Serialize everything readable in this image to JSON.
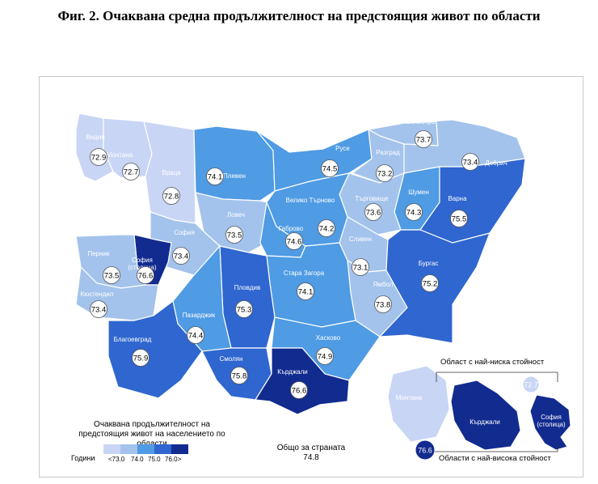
{
  "title": "Фиг. 2. Очаквана средна продължителност на предстоящия живот по области",
  "colors": {
    "c1": "#c8d5f5",
    "c2": "#a3c3ec",
    "c3": "#4f9be4",
    "c4": "#2f66cf",
    "c5": "#122b8f",
    "border": "#ffffff"
  },
  "regions": [
    {
      "name": "Видин",
      "value": "72.9"
    },
    {
      "name": "Монтана",
      "value": "72.7"
    },
    {
      "name": "Враца",
      "value": "72.8"
    },
    {
      "name": "Плевен",
      "value": "74.1"
    },
    {
      "name": "Русе",
      "value": "74.5"
    },
    {
      "name": "Силистра",
      "value": "73.7"
    },
    {
      "name": "Разград",
      "value": "73.2"
    },
    {
      "name": "Добрич",
      "value": "73.4"
    },
    {
      "name": "Шумен",
      "value": "74.3"
    },
    {
      "name": "Търговище",
      "value": "73.6"
    },
    {
      "name": "Велико Търново",
      "value": "74.2"
    },
    {
      "name": "Ловеч",
      "value": "73.5"
    },
    {
      "name": "Габрово",
      "value": "74.6"
    },
    {
      "name": "Варна",
      "value": "75.5"
    },
    {
      "name": "София",
      "value": "73.4"
    },
    {
      "name": "София (столица)",
      "value": "76.6"
    },
    {
      "name": "Перник",
      "value": "73.5"
    },
    {
      "name": "Кюстендил",
      "value": "73.4"
    },
    {
      "name": "Сливен",
      "value": "73.1"
    },
    {
      "name": "Ямбол",
      "value": "73.8"
    },
    {
      "name": "Бургас",
      "value": "75.2"
    },
    {
      "name": "Стара Загора",
      "value": "74.1"
    },
    {
      "name": "Пловдив",
      "value": "75.3"
    },
    {
      "name": "Пазарджик",
      "value": "74.4"
    },
    {
      "name": "Благоевград",
      "value": "75.9"
    },
    {
      "name": "Смолян",
      "value": "75.8"
    },
    {
      "name": "Хасково",
      "value": "74.9"
    },
    {
      "name": "Кърджали",
      "value": "76.6"
    }
  ],
  "inset": {
    "low_caption": "Област с най-ниска стойност",
    "low_region": "Монтана",
    "low_value": "72.7",
    "high_caption": "Области с най-висока стойност",
    "high_region_1": "Кърджали",
    "high_region_2": "София (столица)",
    "high_value": "76.6"
  },
  "legend": {
    "title": "Очаквана продължителност на предстоящия живот на населението по области",
    "years_label": "Години",
    "ticks": [
      "<73.0",
      "74.0",
      "75.0",
      "76.0>"
    ]
  },
  "total": {
    "label": "Общо за страната",
    "value": "74.8"
  }
}
